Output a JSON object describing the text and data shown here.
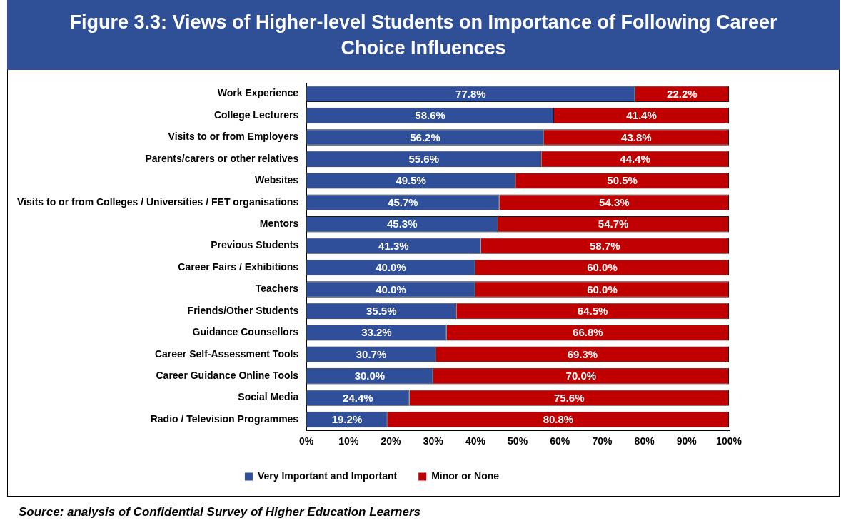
{
  "chart_data": {
    "type": "bar",
    "orientation": "horizontal",
    "stacked": true,
    "title": "Figure 3.3: Views of Higher-level Students on Importance of Following Career Choice Influences",
    "categories": [
      "Work Experience",
      "College Lecturers",
      "Visits to or from Employers",
      "Parents/carers or other relatives",
      "Websites",
      "Visits to or from Colleges / Universities / FET organisations",
      "Mentors",
      "Previous Students",
      "Career Fairs / Exhibitions",
      "Teachers",
      "Friends/Other Students",
      "Guidance Counsellors",
      "Career Self-Assessment Tools",
      "Career Guidance Online Tools",
      "Social Media",
      "Radio / Television Programmes"
    ],
    "series": [
      {
        "name": "Very Important and Important",
        "color": "#2f4f9a",
        "values": [
          77.8,
          58.6,
          56.2,
          55.6,
          49.5,
          45.7,
          45.3,
          41.3,
          40.0,
          40.0,
          35.5,
          33.2,
          30.7,
          30.0,
          24.4,
          19.2
        ],
        "value_labels": [
          "77.8%",
          "58.6%",
          "56.2%",
          "55.6%",
          "49.5%",
          "45.7%",
          "45.3%",
          "41.3%",
          "40.0%",
          "40.0%",
          "35.5%",
          "33.2%",
          "30.7%",
          "30.0%",
          "24.4%",
          "19.2%"
        ]
      },
      {
        "name": "Minor or None",
        "color": "#c00000",
        "values": [
          22.2,
          41.4,
          43.8,
          44.4,
          50.5,
          54.3,
          54.7,
          58.7,
          60.0,
          60.0,
          64.5,
          66.8,
          69.3,
          70.0,
          75.6,
          80.8
        ],
        "value_labels": [
          "22.2%",
          "41.4%",
          "43.8%",
          "44.4%",
          "50.5%",
          "54.3%",
          "54.7%",
          "58.7%",
          "60.0%",
          "60.0%",
          "64.5%",
          "66.8%",
          "69.3%",
          "70.0%",
          "75.6%",
          "80.8%"
        ]
      }
    ],
    "xlim": [
      0,
      100
    ],
    "xticks": [
      {
        "value": 0,
        "label": "0%"
      },
      {
        "value": 10,
        "label": "10%"
      },
      {
        "value": 20,
        "label": "20%"
      },
      {
        "value": 30,
        "label": "30%"
      },
      {
        "value": 40,
        "label": "40%"
      },
      {
        "value": 50,
        "label": "50%"
      },
      {
        "value": 60,
        "label": "60%"
      },
      {
        "value": 70,
        "label": "70%"
      },
      {
        "value": 80,
        "label": "80%"
      },
      {
        "value": 90,
        "label": "90%"
      },
      {
        "value": 100,
        "label": "100%"
      }
    ],
    "grid": false,
    "legend": "bottom",
    "annotations": [
      "Source: analysis of Confidential Survey of Higher Education Learners"
    ]
  }
}
